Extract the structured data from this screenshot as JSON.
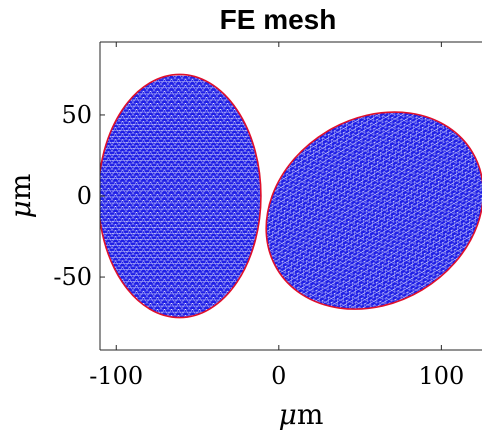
{
  "chart_data": {
    "type": "scatter",
    "title": "FE mesh",
    "xlabel_parts": [
      "μ",
      "m"
    ],
    "ylabel_parts": [
      "μ",
      "m"
    ],
    "xlim": [
      -110,
      125
    ],
    "ylim": [
      -95,
      95
    ],
    "xticks": [
      -100,
      0,
      100
    ],
    "xtick_labels": [
      "-100",
      "0",
      "100"
    ],
    "yticks": [
      -50,
      0,
      50
    ],
    "ytick_labels": [
      "-50",
      "0",
      "50"
    ],
    "grid": false,
    "box": "left-bottom-top",
    "mesh_color": "#1f1fe6",
    "boundary_color": "#e0102a",
    "node_color": "#ffffff",
    "regions": [
      {
        "shape": "ellipse",
        "center": [
          -61,
          0
        ],
        "semi_axes": [
          50,
          75
        ],
        "rotation_deg": 0
      },
      {
        "shape": "ellipse",
        "center": [
          59,
          -9
        ],
        "semi_axes": [
          70,
          57
        ],
        "rotation_deg": 31
      }
    ]
  }
}
